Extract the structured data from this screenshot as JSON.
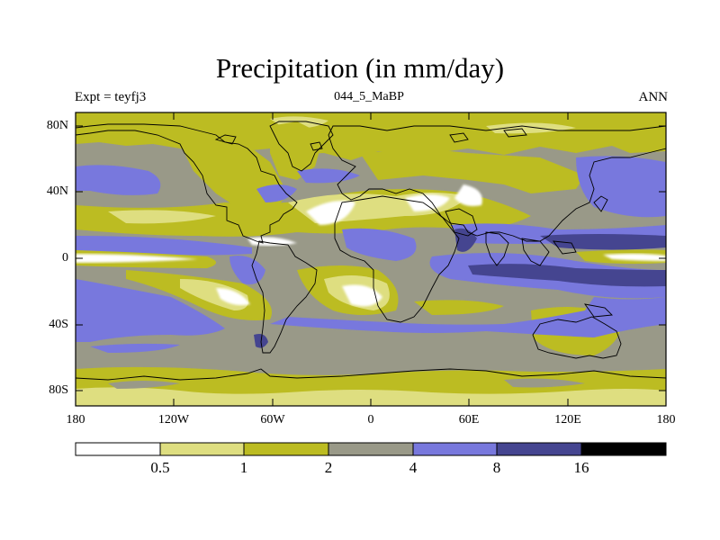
{
  "title": "Precipitation (in mm/day)",
  "subtitle_left": "Expt = teyfj3",
  "subtitle_center": "044_5_MaBP",
  "subtitle_right": "ANN",
  "y_ticks": [
    "80N",
    "40N",
    "0",
    "40S",
    "80S"
  ],
  "x_ticks": [
    "180",
    "120W",
    "60W",
    "0",
    "60E",
    "120E",
    "180"
  ],
  "colorbar": {
    "labels": [
      "0.5",
      "1",
      "2",
      "4",
      "8",
      "16"
    ],
    "colors": [
      "#ffffff",
      "#dede80",
      "#bcbc22",
      "#999988",
      "#7878dd",
      "#454590",
      "#000000"
    ]
  },
  "map_colors": {
    "ocean_base": "#999988",
    "dry_light": "#dede80",
    "dry": "#bcbc22",
    "wet": "#7878dd",
    "very_wet": "#454590",
    "driest": "#ffffff",
    "outline": "#000000"
  }
}
